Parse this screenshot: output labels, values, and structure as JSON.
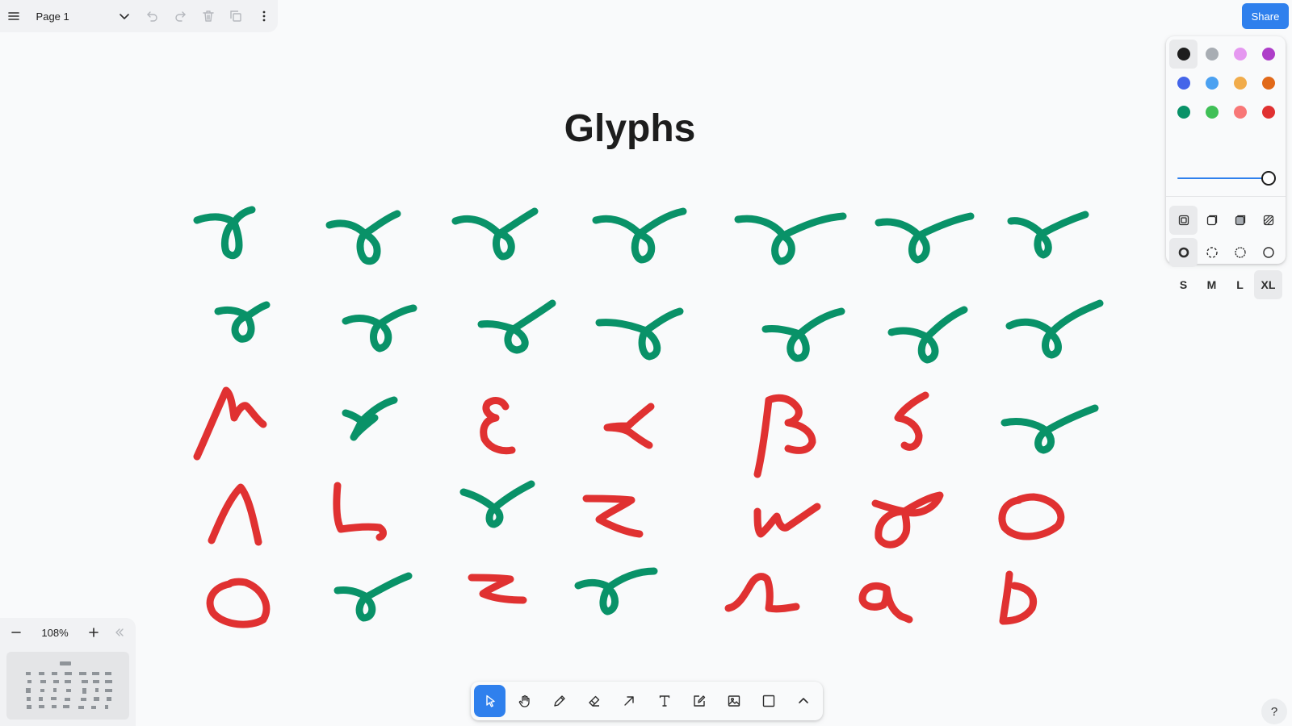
{
  "page_menu": {
    "page_name": "Page 1",
    "icons": [
      "hamburger-menu-icon",
      "chevron-down-icon",
      "undo-icon",
      "redo-icon",
      "trash-icon",
      "duplicate-icon",
      "more-vertical-icon"
    ]
  },
  "share": {
    "label": "Share",
    "color": "#2f80ed"
  },
  "style_panel": {
    "colors": [
      {
        "name": "black",
        "hex": "#1d1d1d"
      },
      {
        "name": "grey",
        "hex": "#a8adb3"
      },
      {
        "name": "light-violet",
        "hex": "#e598f0"
      },
      {
        "name": "violet",
        "hex": "#ae3ec9"
      },
      {
        "name": "blue",
        "hex": "#4465e9"
      },
      {
        "name": "light-blue",
        "hex": "#4ba1f1"
      },
      {
        "name": "yellow",
        "hex": "#f1ac4b"
      },
      {
        "name": "orange",
        "hex": "#e16919"
      },
      {
        "name": "green",
        "hex": "#099268"
      },
      {
        "name": "light-green",
        "hex": "#40c057"
      },
      {
        "name": "light-red",
        "hex": "#f87777"
      },
      {
        "name": "red",
        "hex": "#e03131"
      }
    ],
    "selected_color": "black",
    "opacity": 1.0,
    "fill_options": [
      "fill-none-icon",
      "fill-semi-icon",
      "fill-solid-icon",
      "fill-pattern-icon"
    ],
    "selected_fill": 0,
    "dash_options": [
      "dash-draw-icon",
      "dash-dashed-icon",
      "dash-dotted-icon",
      "dash-solid-icon"
    ],
    "selected_dash": 0,
    "sizes": [
      "S",
      "M",
      "L",
      "XL"
    ],
    "selected_size": "XL"
  },
  "canvas": {
    "title": "Glyphs",
    "glyph_colors": {
      "green": "#099268",
      "red": "#e03131"
    }
  },
  "zoom": {
    "level": "108%"
  },
  "toolbar": {
    "tools": [
      "select-icon",
      "hand-icon",
      "pencil-icon",
      "eraser-icon",
      "arrow-icon",
      "text-icon",
      "note-icon",
      "image-icon",
      "rectangle-icon",
      "chevron-up-icon"
    ],
    "active_tool": "select-icon"
  },
  "help": {
    "label": "?"
  }
}
